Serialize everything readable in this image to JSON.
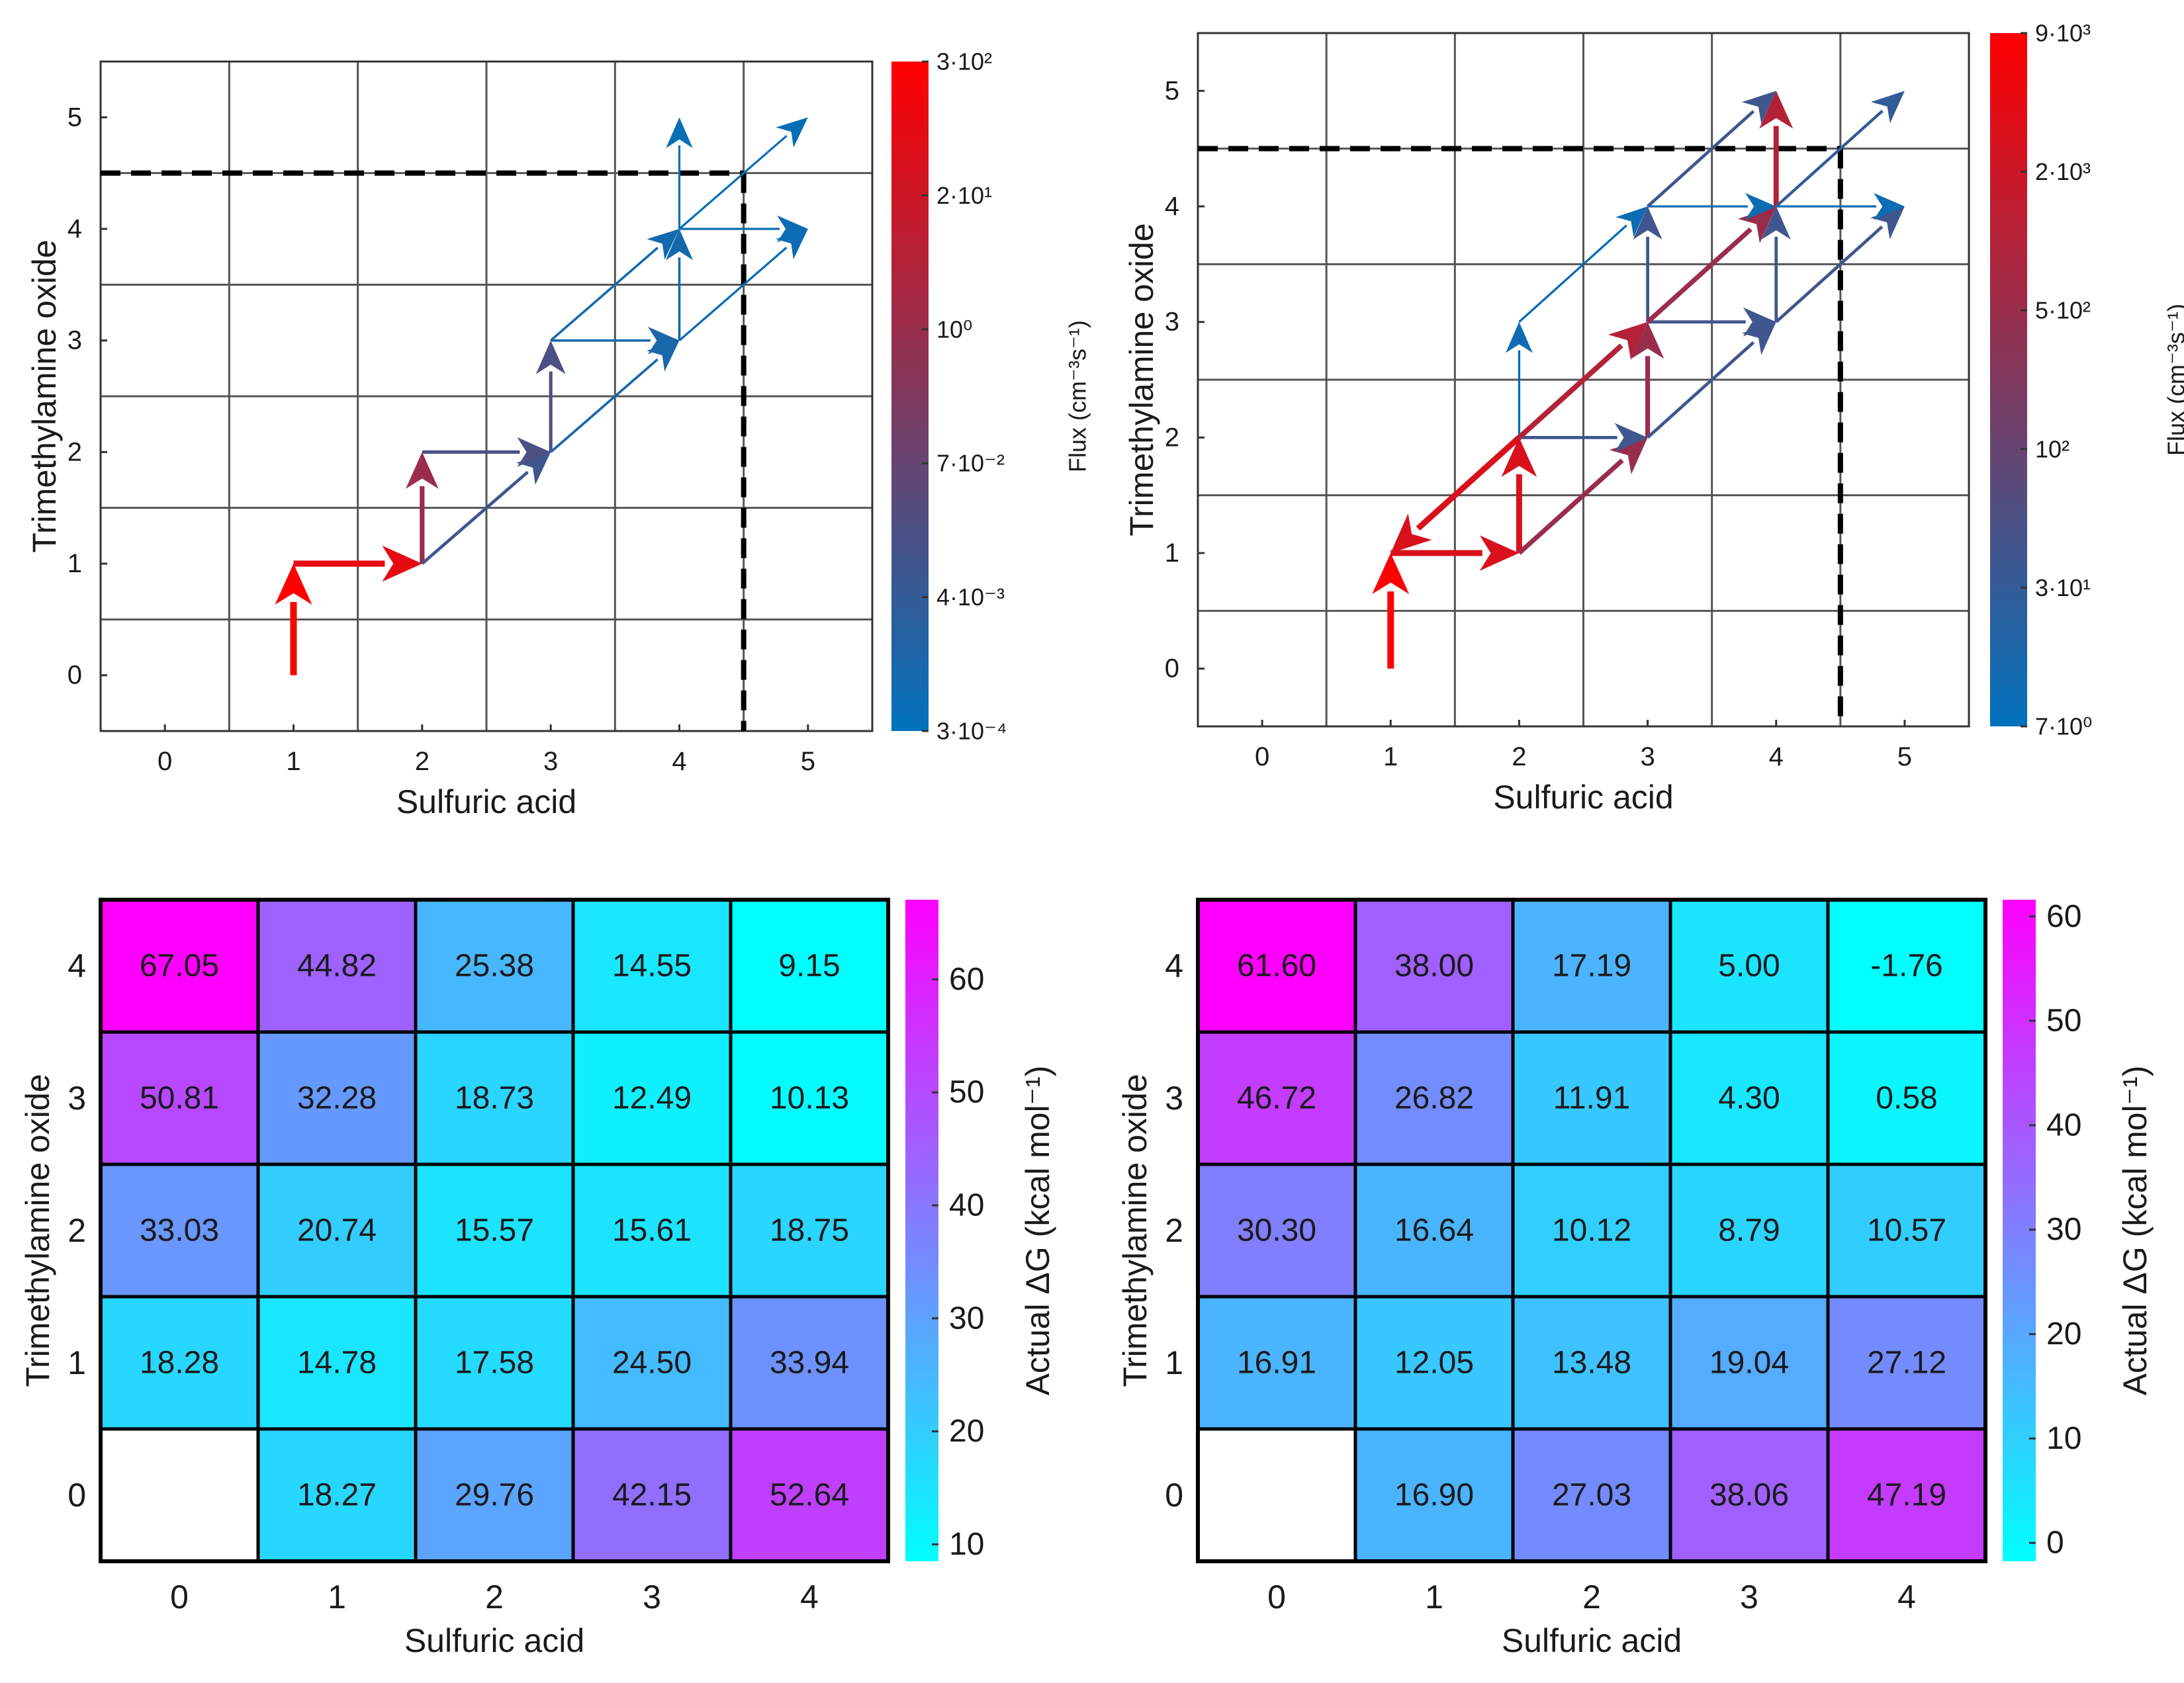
{
  "chart_data": [
    {
      "id": "flux-left",
      "type": "flux-network",
      "xlabel": "Sulfuric acid",
      "ylabel": "Trimethylamine oxide",
      "xlim": [
        -0.5,
        5.5
      ],
      "ylim": [
        -0.5,
        5.5
      ],
      "xticks": [
        "0",
        "1",
        "2",
        "3",
        "4",
        "5"
      ],
      "yticks": [
        "0",
        "1",
        "2",
        "3",
        "4",
        "5"
      ],
      "boundary": {
        "x": 4.5,
        "y": 4.5
      },
      "colorbar": {
        "label": "Flux (cm⁻³s⁻¹)",
        "ticks": [
          "3·10²",
          "2·10¹",
          "10⁰",
          "7·10⁻²",
          "4·10⁻³",
          "3·10⁻⁴"
        ],
        "top_color": "#ff0000",
        "bottom_color": "#0072bd"
      },
      "arrows": [
        {
          "from": [
            1,
            0
          ],
          "to": [
            1,
            1
          ],
          "level": 1.0
        },
        {
          "from": [
            1,
            1
          ],
          "to": [
            2,
            1
          ],
          "level": 0.9
        },
        {
          "from": [
            2,
            1
          ],
          "to": [
            2,
            2
          ],
          "level": 0.6
        },
        {
          "from": [
            2,
            1
          ],
          "to": [
            3,
            2
          ],
          "level": 0.25
        },
        {
          "from": [
            2,
            2
          ],
          "to": [
            3,
            2
          ],
          "level": 0.3
        },
        {
          "from": [
            3,
            2
          ],
          "to": [
            3,
            3
          ],
          "level": 0.3
        },
        {
          "from": [
            3,
            2
          ],
          "to": [
            4,
            3
          ],
          "level": 0.1
        },
        {
          "from": [
            3,
            3
          ],
          "to": [
            4,
            3
          ],
          "level": 0.1
        },
        {
          "from": [
            3,
            3
          ],
          "to": [
            4,
            4
          ],
          "level": 0.08
        },
        {
          "from": [
            4,
            3
          ],
          "to": [
            4,
            4
          ],
          "level": 0.08
        },
        {
          "from": [
            4,
            3
          ],
          "to": [
            5,
            4
          ],
          "level": 0.05
        },
        {
          "from": [
            4,
            4
          ],
          "to": [
            5,
            4
          ],
          "level": 0.05
        },
        {
          "from": [
            4,
            4
          ],
          "to": [
            4,
            5
          ],
          "level": 0.03
        },
        {
          "from": [
            4,
            4
          ],
          "to": [
            5,
            5
          ],
          "level": 0.03
        }
      ]
    },
    {
      "id": "flux-right",
      "type": "flux-network",
      "xlabel": "Sulfuric acid",
      "ylabel": "Trimethylamine oxide",
      "xlim": [
        -0.5,
        5.5
      ],
      "ylim": [
        -0.5,
        5.5
      ],
      "xticks": [
        "0",
        "1",
        "2",
        "3",
        "4",
        "5"
      ],
      "yticks": [
        "0",
        "1",
        "2",
        "3",
        "4",
        "5"
      ],
      "boundary": {
        "x": 4.5,
        "y": 4.5
      },
      "colorbar": {
        "label": "Flux (cm⁻³s⁻¹)",
        "ticks": [
          "9·10³",
          "2·10³",
          "5·10²",
          "10²",
          "3·10¹",
          "7·10⁰"
        ],
        "top_color": "#ff0000",
        "bottom_color": "#0072bd"
      },
      "arrows": [
        {
          "from": [
            1,
            0
          ],
          "to": [
            1,
            1
          ],
          "level": 1.0
        },
        {
          "from": [
            1,
            1
          ],
          "to": [
            2,
            1
          ],
          "level": 0.85
        },
        {
          "from": [
            2,
            2
          ],
          "to": [
            1,
            1
          ],
          "level": 0.85
        },
        {
          "from": [
            2,
            1
          ],
          "to": [
            2,
            2
          ],
          "level": 0.85
        },
        {
          "from": [
            2,
            1
          ],
          "to": [
            3,
            2
          ],
          "level": 0.6
        },
        {
          "from": [
            2,
            2
          ],
          "to": [
            3,
            2
          ],
          "level": 0.25
        },
        {
          "from": [
            2,
            2
          ],
          "to": [
            2,
            3
          ],
          "level": 0.05
        },
        {
          "from": [
            2,
            2
          ],
          "to": [
            3,
            3
          ],
          "level": 0.7
        },
        {
          "from": [
            2,
            3
          ],
          "to": [
            3,
            4
          ],
          "level": 0.05
        },
        {
          "from": [
            3,
            2
          ],
          "to": [
            3,
            3
          ],
          "level": 0.6
        },
        {
          "from": [
            3,
            2
          ],
          "to": [
            4,
            3
          ],
          "level": 0.25
        },
        {
          "from": [
            3,
            3
          ],
          "to": [
            4,
            3
          ],
          "level": 0.25
        },
        {
          "from": [
            3,
            3
          ],
          "to": [
            3,
            4
          ],
          "level": 0.25
        },
        {
          "from": [
            3,
            3
          ],
          "to": [
            4,
            4
          ],
          "level": 0.6
        },
        {
          "from": [
            3,
            4
          ],
          "to": [
            4,
            4
          ],
          "level": 0.05
        },
        {
          "from": [
            3,
            4
          ],
          "to": [
            4,
            5
          ],
          "level": 0.25
        },
        {
          "from": [
            4,
            3
          ],
          "to": [
            4,
            4
          ],
          "level": 0.25
        },
        {
          "from": [
            4,
            3
          ],
          "to": [
            5,
            4
          ],
          "level": 0.25
        },
        {
          "from": [
            4,
            4
          ],
          "to": [
            5,
            4
          ],
          "level": 0.05
        },
        {
          "from": [
            4,
            4
          ],
          "to": [
            4,
            5
          ],
          "level": 0.7
        },
        {
          "from": [
            4,
            4
          ],
          "to": [
            5,
            5
          ],
          "level": 0.2
        }
      ]
    },
    {
      "id": "dg-left",
      "type": "heatmap",
      "xlabel": "Sulfuric acid",
      "ylabel": "Trimethylamine oxide",
      "x": [
        "0",
        "1",
        "2",
        "3",
        "4"
      ],
      "y": [
        "0",
        "1",
        "2",
        "3",
        "4"
      ],
      "rows": [
        [
          "67.05",
          "44.82",
          "25.38",
          "14.55",
          "9.15"
        ],
        [
          "50.81",
          "32.28",
          "18.73",
          "12.49",
          "10.13"
        ],
        [
          "33.03",
          "20.74",
          "15.57",
          "15.61",
          "18.75"
        ],
        [
          "18.28",
          "14.78",
          "17.58",
          "24.50",
          "33.94"
        ],
        [
          null,
          "18.27",
          "29.76",
          "42.15",
          "52.64"
        ]
      ],
      "vmin": 9.15,
      "vmax": 67.05,
      "colorbar": {
        "label": "Actual ΔG (kcal mol⁻¹)",
        "ticks": [
          10,
          20,
          30,
          40,
          50,
          60
        ]
      }
    },
    {
      "id": "dg-right",
      "type": "heatmap",
      "xlabel": "Sulfuric acid",
      "ylabel": "Trimethylamine oxide",
      "x": [
        "0",
        "1",
        "2",
        "3",
        "4"
      ],
      "y": [
        "0",
        "1",
        "2",
        "3",
        "4"
      ],
      "rows": [
        [
          "61.60",
          "38.00",
          "17.19",
          "5.00",
          "-1.76"
        ],
        [
          "46.72",
          "26.82",
          "11.91",
          "4.30",
          "0.58"
        ],
        [
          "30.30",
          "16.64",
          "10.12",
          "8.79",
          "10.57"
        ],
        [
          "16.91",
          "12.05",
          "13.48",
          "19.04",
          "27.12"
        ],
        [
          null,
          "16.90",
          "27.03",
          "38.06",
          "47.19"
        ]
      ],
      "vmin": -1.76,
      "vmax": 61.6,
      "colorbar": {
        "label": "Actual ΔG (kcal mol⁻¹)",
        "ticks": [
          0,
          10,
          20,
          30,
          40,
          50,
          60
        ]
      }
    }
  ]
}
